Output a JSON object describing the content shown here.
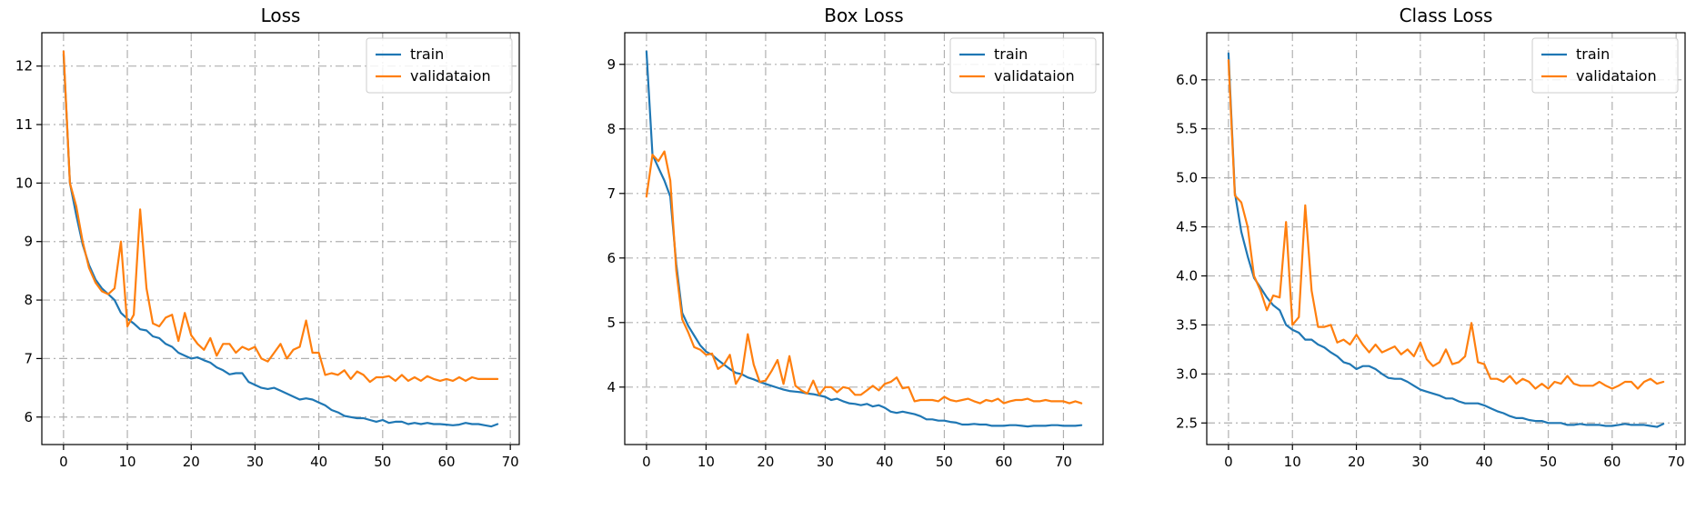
{
  "colors": {
    "train": "#1f77b4",
    "validation": "#ff7f0e"
  },
  "chart_data": [
    {
      "type": "line",
      "title": "Loss",
      "xlabel": "",
      "ylabel": "",
      "grid": true,
      "legend_position": "top-right",
      "xlim": [
        -3.4,
        71.4
      ],
      "ylim": [
        5.53,
        12.57
      ],
      "xticks": [
        0,
        10,
        20,
        30,
        40,
        50,
        60,
        70
      ],
      "yticks": [
        6,
        7,
        8,
        9,
        10,
        11,
        12
      ],
      "series": [
        {
          "name": "train",
          "x": [
            0,
            1,
            2,
            3,
            4,
            5,
            6,
            7,
            8,
            9,
            10,
            11,
            12,
            13,
            14,
            15,
            16,
            17,
            18,
            19,
            20,
            21,
            22,
            23,
            24,
            25,
            26,
            27,
            28,
            29,
            30,
            31,
            32,
            33,
            34,
            35,
            36,
            37,
            38,
            39,
            40,
            41,
            42,
            43,
            44,
            45,
            46,
            47,
            48,
            49,
            50,
            51,
            52,
            53,
            54,
            55,
            56,
            57,
            58,
            59,
            60,
            61,
            62,
            63,
            64,
            65,
            66,
            67,
            68
          ],
          "values": [
            12.2,
            10.0,
            9.45,
            8.95,
            8.6,
            8.35,
            8.2,
            8.1,
            8.0,
            7.78,
            7.68,
            7.6,
            7.5,
            7.48,
            7.38,
            7.35,
            7.25,
            7.2,
            7.1,
            7.05,
            7.0,
            7.02,
            6.97,
            6.93,
            6.85,
            6.8,
            6.73,
            6.75,
            6.75,
            6.6,
            6.55,
            6.5,
            6.48,
            6.5,
            6.45,
            6.4,
            6.35,
            6.3,
            6.32,
            6.3,
            6.25,
            6.2,
            6.12,
            6.08,
            6.02,
            6.0,
            5.98,
            5.98,
            5.95,
            5.92,
            5.95,
            5.9,
            5.92,
            5.92,
            5.88,
            5.9,
            5.88,
            5.9,
            5.88,
            5.88,
            5.87,
            5.86,
            5.87,
            5.9,
            5.88,
            5.88,
            5.86,
            5.84,
            5.88
          ]
        },
        {
          "name": "validataion",
          "x": [
            0,
            1,
            2,
            3,
            4,
            5,
            6,
            7,
            8,
            9,
            10,
            11,
            12,
            13,
            14,
            15,
            16,
            17,
            18,
            19,
            20,
            21,
            22,
            23,
            24,
            25,
            26,
            27,
            28,
            29,
            30,
            31,
            32,
            33,
            34,
            35,
            36,
            37,
            38,
            39,
            40,
            41,
            42,
            43,
            44,
            45,
            46,
            47,
            48,
            49,
            50,
            51,
            52,
            53,
            54,
            55,
            56,
            57,
            58,
            59,
            60,
            61,
            62,
            63,
            64,
            65,
            66,
            67,
            68
          ],
          "values": [
            12.25,
            10.0,
            9.6,
            9.0,
            8.55,
            8.3,
            8.15,
            8.1,
            8.2,
            9.0,
            7.55,
            7.75,
            9.55,
            8.2,
            7.6,
            7.55,
            7.7,
            7.75,
            7.3,
            7.78,
            7.4,
            7.25,
            7.15,
            7.35,
            7.05,
            7.25,
            7.25,
            7.1,
            7.2,
            7.15,
            7.2,
            7.0,
            6.95,
            7.1,
            7.25,
            7.0,
            7.15,
            7.2,
            7.65,
            7.1,
            7.1,
            6.72,
            6.75,
            6.72,
            6.8,
            6.65,
            6.78,
            6.72,
            6.6,
            6.68,
            6.68,
            6.7,
            6.62,
            6.72,
            6.62,
            6.68,
            6.62,
            6.7,
            6.65,
            6.62,
            6.65,
            6.62,
            6.68,
            6.62,
            6.68,
            6.65,
            6.65,
            6.65,
            6.65
          ]
        }
      ]
    },
    {
      "type": "line",
      "title": "Box Loss",
      "xlabel": "",
      "ylabel": "",
      "grid": true,
      "legend_position": "top-right",
      "xlim": [
        -3.65,
        76.65
      ],
      "ylim": [
        3.11,
        9.49
      ],
      "xticks": [
        0,
        10,
        20,
        30,
        40,
        50,
        60,
        70
      ],
      "yticks": [
        4,
        5,
        6,
        7,
        8,
        9
      ],
      "series": [
        {
          "name": "train",
          "x": [
            0,
            1,
            2,
            3,
            4,
            5,
            6,
            7,
            8,
            9,
            10,
            11,
            12,
            13,
            14,
            15,
            16,
            17,
            18,
            19,
            20,
            21,
            22,
            23,
            24,
            25,
            26,
            27,
            28,
            29,
            30,
            31,
            32,
            33,
            34,
            35,
            36,
            37,
            38,
            39,
            40,
            41,
            42,
            43,
            44,
            45,
            46,
            47,
            48,
            49,
            50,
            51,
            52,
            53,
            54,
            55,
            56,
            57,
            58,
            59,
            60,
            61,
            62,
            63,
            64,
            65,
            66,
            67,
            68,
            69,
            70,
            71,
            72,
            73
          ],
          "values": [
            9.2,
            7.6,
            7.4,
            7.2,
            6.95,
            5.9,
            5.15,
            4.95,
            4.8,
            4.65,
            4.55,
            4.5,
            4.42,
            4.35,
            4.28,
            4.22,
            4.2,
            4.15,
            4.12,
            4.08,
            4.05,
            4.02,
            3.99,
            3.96,
            3.94,
            3.93,
            3.92,
            3.9,
            3.89,
            3.87,
            3.85,
            3.8,
            3.82,
            3.78,
            3.75,
            3.74,
            3.72,
            3.74,
            3.7,
            3.72,
            3.68,
            3.62,
            3.6,
            3.62,
            3.6,
            3.58,
            3.55,
            3.5,
            3.5,
            3.48,
            3.48,
            3.46,
            3.45,
            3.42,
            3.42,
            3.43,
            3.42,
            3.42,
            3.4,
            3.4,
            3.4,
            3.41,
            3.41,
            3.4,
            3.39,
            3.4,
            3.4,
            3.4,
            3.41,
            3.41,
            3.4,
            3.4,
            3.4,
            3.41
          ]
        },
        {
          "name": "validataion",
          "x": [
            0,
            1,
            2,
            3,
            4,
            5,
            6,
            7,
            8,
            9,
            10,
            11,
            12,
            13,
            14,
            15,
            16,
            17,
            18,
            19,
            20,
            21,
            22,
            23,
            24,
            25,
            26,
            27,
            28,
            29,
            30,
            31,
            32,
            33,
            34,
            35,
            36,
            37,
            38,
            39,
            40,
            41,
            42,
            43,
            44,
            45,
            46,
            47,
            48,
            49,
            50,
            51,
            52,
            53,
            54,
            55,
            56,
            57,
            58,
            59,
            60,
            61,
            62,
            63,
            64,
            65,
            66,
            67,
            68,
            69,
            70,
            71,
            72,
            73
          ],
          "values": [
            6.95,
            7.6,
            7.5,
            7.65,
            7.2,
            5.8,
            5.05,
            4.85,
            4.62,
            4.58,
            4.5,
            4.52,
            4.28,
            4.35,
            4.5,
            4.05,
            4.2,
            4.82,
            4.35,
            4.08,
            4.1,
            4.25,
            4.42,
            4.05,
            4.48,
            4.02,
            3.95,
            3.9,
            4.1,
            3.88,
            4.0,
            4.0,
            3.92,
            4.0,
            3.98,
            3.88,
            3.88,
            3.95,
            4.02,
            3.95,
            4.05,
            4.08,
            4.15,
            3.98,
            4.0,
            3.78,
            3.8,
            3.8,
            3.8,
            3.78,
            3.85,
            3.8,
            3.78,
            3.8,
            3.82,
            3.78,
            3.75,
            3.8,
            3.78,
            3.82,
            3.75,
            3.78,
            3.8,
            3.8,
            3.82,
            3.78,
            3.78,
            3.8,
            3.78,
            3.78,
            3.78,
            3.75,
            3.78,
            3.75
          ]
        }
      ]
    },
    {
      "type": "line",
      "title": "Class Loss",
      "xlabel": "",
      "ylabel": "",
      "grid": true,
      "legend_position": "top-right",
      "xlim": [
        -3.4,
        71.4
      ],
      "ylim": [
        2.28,
        6.48
      ],
      "xticks": [
        0,
        10,
        20,
        30,
        40,
        50,
        60,
        70
      ],
      "yticks": [
        2.5,
        3.0,
        3.5,
        4.0,
        4.5,
        5.0,
        5.5,
        6.0
      ],
      "series": [
        {
          "name": "train",
          "x": [
            0,
            1,
            2,
            3,
            4,
            5,
            6,
            7,
            8,
            9,
            10,
            11,
            12,
            13,
            14,
            15,
            16,
            17,
            18,
            19,
            20,
            21,
            22,
            23,
            24,
            25,
            26,
            27,
            28,
            29,
            30,
            31,
            32,
            33,
            34,
            35,
            36,
            37,
            38,
            39,
            40,
            41,
            42,
            43,
            44,
            45,
            46,
            47,
            48,
            49,
            50,
            51,
            52,
            53,
            54,
            55,
            56,
            57,
            58,
            59,
            60,
            61,
            62,
            63,
            64,
            65,
            66,
            67,
            68
          ],
          "values": [
            6.27,
            4.85,
            4.45,
            4.2,
            3.98,
            3.88,
            3.78,
            3.7,
            3.65,
            3.5,
            3.45,
            3.42,
            3.35,
            3.35,
            3.3,
            3.27,
            3.22,
            3.18,
            3.12,
            3.1,
            3.05,
            3.08,
            3.08,
            3.05,
            3.0,
            2.96,
            2.95,
            2.95,
            2.92,
            2.88,
            2.84,
            2.82,
            2.8,
            2.78,
            2.75,
            2.75,
            2.72,
            2.7,
            2.7,
            2.7,
            2.68,
            2.65,
            2.62,
            2.6,
            2.57,
            2.55,
            2.55,
            2.53,
            2.52,
            2.52,
            2.5,
            2.5,
            2.5,
            2.48,
            2.48,
            2.49,
            2.48,
            2.48,
            2.48,
            2.47,
            2.47,
            2.48,
            2.49,
            2.48,
            2.48,
            2.48,
            2.47,
            2.46,
            2.49
          ]
        },
        {
          "name": "validataion",
          "x": [
            0,
            1,
            2,
            3,
            4,
            5,
            6,
            7,
            8,
            9,
            10,
            11,
            12,
            13,
            14,
            15,
            16,
            17,
            18,
            19,
            20,
            21,
            22,
            23,
            24,
            25,
            26,
            27,
            28,
            29,
            30,
            31,
            32,
            33,
            34,
            35,
            36,
            37,
            38,
            39,
            40,
            41,
            42,
            43,
            44,
            45,
            46,
            47,
            48,
            49,
            50,
            51,
            52,
            53,
            54,
            55,
            56,
            57,
            58,
            59,
            60,
            61,
            62,
            63,
            64,
            65,
            66,
            67,
            68
          ],
          "values": [
            6.2,
            4.82,
            4.75,
            4.5,
            4.0,
            3.85,
            3.65,
            3.8,
            3.78,
            4.55,
            3.5,
            3.58,
            4.72,
            3.85,
            3.48,
            3.48,
            3.5,
            3.32,
            3.35,
            3.3,
            3.4,
            3.3,
            3.22,
            3.3,
            3.22,
            3.25,
            3.28,
            3.2,
            3.25,
            3.18,
            3.32,
            3.15,
            3.08,
            3.12,
            3.25,
            3.1,
            3.12,
            3.18,
            3.52,
            3.12,
            3.1,
            2.95,
            2.95,
            2.92,
            2.98,
            2.9,
            2.95,
            2.92,
            2.85,
            2.9,
            2.85,
            2.92,
            2.9,
            2.98,
            2.9,
            2.88,
            2.88,
            2.88,
            2.92,
            2.88,
            2.85,
            2.88,
            2.92,
            2.92,
            2.85,
            2.92,
            2.95,
            2.9,
            2.92
          ]
        }
      ]
    }
  ]
}
